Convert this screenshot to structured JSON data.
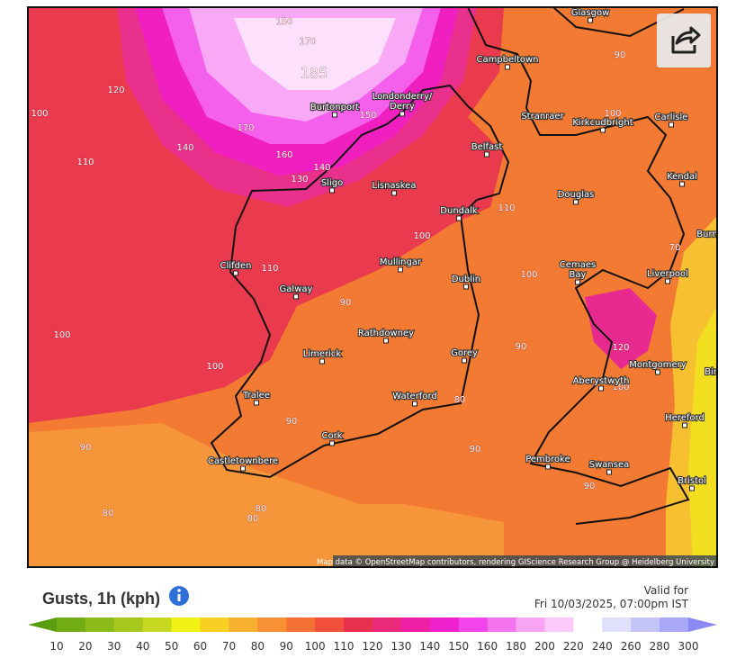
{
  "map": {
    "places": [
      {
        "name": "Glasgow"
      },
      {
        "name": "Campbeltown"
      },
      {
        "name": "Burtonport"
      },
      {
        "name": "Londonderry/"
      },
      {
        "name": "Derry"
      },
      {
        "name": "Stranraer"
      },
      {
        "name": "Kirkcudbright"
      },
      {
        "name": "Carlisle"
      },
      {
        "name": "Belfast"
      },
      {
        "name": "Kendal"
      },
      {
        "name": "Sligo"
      },
      {
        "name": "Lisnaskea"
      },
      {
        "name": "Douglas"
      },
      {
        "name": "Dundalk"
      },
      {
        "name": "Burn"
      },
      {
        "name": "Clifden"
      },
      {
        "name": "Mullingar"
      },
      {
        "name": "Cemaes"
      },
      {
        "name": "Bay"
      },
      {
        "name": "Liverpool"
      },
      {
        "name": "Galway"
      },
      {
        "name": "Dublin"
      },
      {
        "name": "Rathdowney"
      },
      {
        "name": "Limerick"
      },
      {
        "name": "Gorey"
      },
      {
        "name": "Montgomery"
      },
      {
        "name": "Aberystwyth"
      },
      {
        "name": "Tralee"
      },
      {
        "name": "Waterford"
      },
      {
        "name": "Hereford"
      },
      {
        "name": "Cork"
      },
      {
        "name": "Castletownbere"
      },
      {
        "name": "Pembroke"
      },
      {
        "name": "Swansea"
      },
      {
        "name": "Bristol"
      },
      {
        "name": "Bir"
      }
    ],
    "contours": [
      150,
      170,
      185,
      120,
      100,
      110,
      140,
      170,
      160,
      150,
      140,
      130,
      110,
      100,
      110,
      90,
      100,
      90,
      100,
      100,
      100,
      90,
      120,
      100,
      80,
      90,
      90,
      90,
      90,
      80,
      80,
      80,
      70
    ],
    "attribution": "Map data © OpenStreetMap contributors, rendering GIScience Research Group @ Heidelberg University"
  },
  "legend": {
    "title": "Gusts, 1h (kph)",
    "valid_label": "Valid for",
    "valid_time": "Fri 10/03/2025, 07:00pm IST",
    "ticks": [
      10,
      20,
      30,
      40,
      50,
      60,
      70,
      80,
      90,
      100,
      110,
      120,
      130,
      140,
      150,
      160,
      180,
      200,
      220,
      240,
      260,
      280,
      300
    ],
    "colors": [
      "#5a9e10",
      "#72ac14",
      "#8cba18",
      "#a8c81e",
      "#c6d820",
      "#f2f014",
      "#f8d024",
      "#f8b030",
      "#f79134",
      "#f57034",
      "#f24e3c",
      "#e8304e",
      "#ec2a7c",
      "#f020a4",
      "#f020cc",
      "#f244ea",
      "#f474f0",
      "#f8a4f4",
      "#fbcafa",
      "#ffffff",
      "#e0e0fc",
      "#c4c4f8",
      "#a8a8f6",
      "#8a8af2"
    ]
  }
}
